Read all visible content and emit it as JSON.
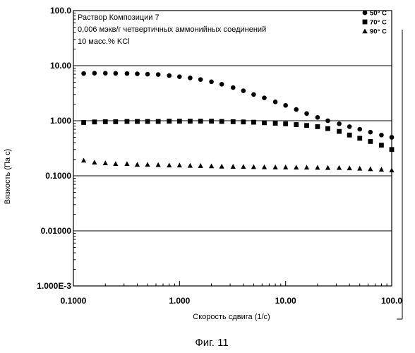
{
  "chart_data": {
    "type": "scatter",
    "x_scale": "log",
    "y_scale": "log",
    "xlim": [
      0.1,
      100
    ],
    "ylim": [
      0.001,
      100
    ],
    "xlabel": "Скорость сдвига (1/с)",
    "ylabel": "Вязкость (Па с)",
    "x_ticks": [
      {
        "value": 0.1,
        "label": "0.1000"
      },
      {
        "value": 1,
        "label": "1.000"
      },
      {
        "value": 10,
        "label": "10.00"
      },
      {
        "value": 100,
        "label": "100.0"
      }
    ],
    "y_ticks": [
      {
        "value": 100,
        "label": "100.0"
      },
      {
        "value": 10,
        "label": "10.00"
      },
      {
        "value": 1,
        "label": "1.000"
      },
      {
        "value": 0.1,
        "label": "0.1000"
      },
      {
        "value": 0.01,
        "label": "0.01000"
      },
      {
        "value": 0.001,
        "label": "1.000E-3"
      }
    ],
    "grid": "horizontal major",
    "annotations": [
      "Раствор Композиции 7",
      "0,006 мэкв/г четвертичных аммонийных соединений",
      "10 масс.% KCl"
    ],
    "legend_position": "top-right",
    "x": [
      0.125,
      0.158,
      0.2,
      0.25,
      0.32,
      0.4,
      0.5,
      0.63,
      0.8,
      1.0,
      1.26,
      1.58,
      2.0,
      2.5,
      3.2,
      4.0,
      5.0,
      6.3,
      8.0,
      10.0,
      12.6,
      15.8,
      20.0,
      25.0,
      32.0,
      40.0,
      50.0,
      63.0,
      80.0,
      100.0
    ],
    "series": [
      {
        "name": "50° C",
        "marker": "circle",
        "values": [
          7.2,
          7.3,
          7.3,
          7.25,
          7.2,
          7.1,
          7.0,
          6.9,
          6.6,
          6.3,
          6.0,
          5.6,
          5.1,
          4.6,
          4.0,
          3.5,
          3.0,
          2.6,
          2.2,
          1.9,
          1.6,
          1.35,
          1.15,
          1.0,
          0.88,
          0.78,
          0.7,
          0.62,
          0.55,
          0.5
        ]
      },
      {
        "name": "70° C",
        "marker": "square",
        "values": [
          0.93,
          0.95,
          0.96,
          0.96,
          0.97,
          0.97,
          0.97,
          0.97,
          0.98,
          0.98,
          0.98,
          0.98,
          0.98,
          0.97,
          0.96,
          0.95,
          0.94,
          0.92,
          0.9,
          0.88,
          0.85,
          0.82,
          0.78,
          0.72,
          0.64,
          0.55,
          0.48,
          0.42,
          0.36,
          0.3
        ]
      },
      {
        "name": "90° C",
        "marker": "triangle",
        "values": [
          0.19,
          0.175,
          0.17,
          0.165,
          0.165,
          0.16,
          0.16,
          0.158,
          0.155,
          0.155,
          0.153,
          0.152,
          0.15,
          0.148,
          0.147,
          0.146,
          0.145,
          0.144,
          0.143,
          0.143,
          0.142,
          0.142,
          0.141,
          0.14,
          0.14,
          0.138,
          0.136,
          0.133,
          0.13,
          0.126
        ]
      }
    ]
  },
  "caption": "Фиг. 11"
}
